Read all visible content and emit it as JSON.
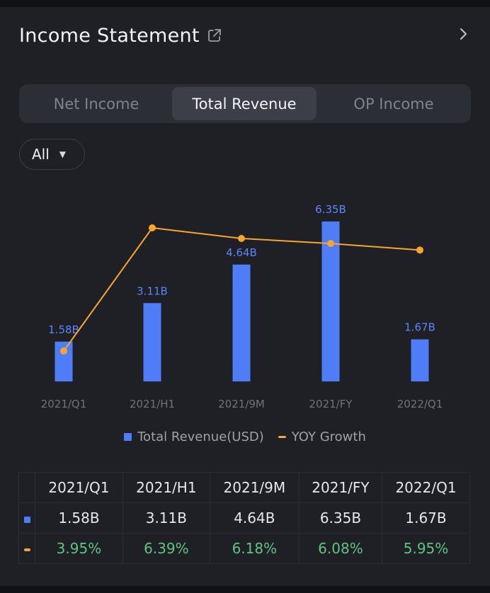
{
  "header": {
    "title": "Income Statement"
  },
  "tabs": [
    {
      "label": "Net Income",
      "active": false
    },
    {
      "label": "Total Revenue",
      "active": true
    },
    {
      "label": "OP Income",
      "active": false
    }
  ],
  "filter": {
    "selected": "All"
  },
  "icons": {
    "external_link": "external-link-icon",
    "chevron": "chevron-right-icon",
    "dropdown": "caret-down-icon"
  },
  "colors": {
    "bar": "#4f7df7",
    "line": "#f6a52f",
    "growth_text": "#5fc47f"
  },
  "chart_data": {
    "type": "bar",
    "categories": [
      "2021/Q1",
      "2021/H1",
      "2021/9M",
      "2021/FY",
      "2022/Q1"
    ],
    "series": [
      {
        "name": "Total Revenue(USD)",
        "type": "bar",
        "values": [
          1.58,
          3.11,
          4.64,
          6.35,
          1.67
        ],
        "labels": [
          "1.58B",
          "3.11B",
          "4.64B",
          "6.35B",
          "1.67B"
        ]
      },
      {
        "name": "YOY Growth",
        "type": "line",
        "values": [
          3.95,
          6.39,
          6.18,
          6.08,
          5.95
        ]
      }
    ],
    "legend_position": "bottom",
    "grid": false
  },
  "table": {
    "headers": [
      "2021/Q1",
      "2021/H1",
      "2021/9M",
      "2021/FY",
      "2022/Q1"
    ],
    "revenue_row": [
      "1.58B",
      "3.11B",
      "4.64B",
      "6.35B",
      "1.67B"
    ],
    "growth_row": [
      "3.95%",
      "6.39%",
      "6.18%",
      "6.08%",
      "5.95%"
    ]
  }
}
